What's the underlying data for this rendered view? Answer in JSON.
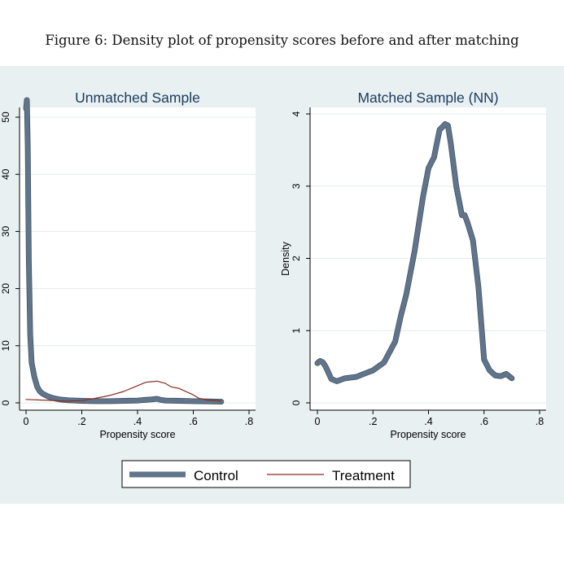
{
  "caption": "Figure 6: Density plot of propensity scores before and after matching",
  "colors": {
    "outer_background": "#e9f0f2",
    "plot_background": "#ffffff",
    "control": "#60758b",
    "treatment": "#8b2c1e",
    "title": "#1c3a5e"
  },
  "chart_data": [
    {
      "type": "line",
      "title": "Unmatched Sample",
      "xlabel": "Propensity score",
      "ylabel": "",
      "xlim": [
        0,
        0.8
      ],
      "ylim": [
        0,
        53
      ],
      "xticks": [
        0,
        0.2,
        0.4,
        0.6,
        0.8
      ],
      "xtick_labels": [
        "0",
        ".2",
        ".4",
        ".6",
        ".8"
      ],
      "yticks": [
        0,
        10,
        20,
        30,
        40,
        50
      ],
      "ytick_labels": [
        "0",
        "10",
        "20",
        "30",
        "40",
        "50"
      ],
      "grid": true,
      "series": [
        {
          "name": "Control",
          "x": [
            0,
            0.003,
            0.006,
            0.01,
            0.015,
            0.02,
            0.03,
            0.04,
            0.05,
            0.06,
            0.08,
            0.1,
            0.12,
            0.15,
            0.2,
            0.25,
            0.3,
            0.35,
            0.4,
            0.42,
            0.45,
            0.47,
            0.48,
            0.5,
            0.55,
            0.6,
            0.65,
            0.7
          ],
          "y": [
            51.5,
            53,
            45,
            25,
            12,
            7,
            4.5,
            2.8,
            2,
            1.6,
            1.1,
            0.8,
            0.6,
            0.45,
            0.35,
            0.3,
            0.3,
            0.35,
            0.4,
            0.5,
            0.6,
            0.7,
            0.55,
            0.4,
            0.35,
            0.3,
            0.25,
            0.2
          ]
        },
        {
          "name": "Treatment",
          "x": [
            0,
            0.05,
            0.1,
            0.15,
            0.2,
            0.25,
            0.3,
            0.35,
            0.4,
            0.43,
            0.45,
            0.47,
            0.5,
            0.52,
            0.55,
            0.6,
            0.62,
            0.65,
            0.7
          ],
          "y": [
            0.6,
            0.5,
            0.4,
            0.3,
            0.4,
            0.8,
            1.3,
            2,
            3,
            3.6,
            3.7,
            3.8,
            3.4,
            2.8,
            2.5,
            1.4,
            0.8,
            0.5,
            0.3
          ]
        }
      ]
    },
    {
      "type": "line",
      "title": "Matched Sample (NN)",
      "xlabel": "Propensity score",
      "ylabel": "Density",
      "xlim": [
        0,
        0.8
      ],
      "ylim": [
        0,
        4
      ],
      "xticks": [
        0,
        0.2,
        0.4,
        0.6,
        0.8
      ],
      "xtick_labels": [
        "0",
        ".2",
        ".4",
        ".6",
        ".8"
      ],
      "yticks": [
        0,
        1,
        2,
        3,
        4
      ],
      "ytick_labels": [
        "0",
        "1",
        "2",
        "3",
        "4"
      ],
      "grid": true,
      "series": [
        {
          "name": "Control",
          "x": [
            0,
            0.01,
            0.02,
            0.03,
            0.05,
            0.07,
            0.1,
            0.14,
            0.18,
            0.2,
            0.24,
            0.28,
            0.3,
            0.32,
            0.35,
            0.38,
            0.4,
            0.42,
            0.44,
            0.45,
            0.46,
            0.47,
            0.48,
            0.49,
            0.5,
            0.52,
            0.53,
            0.54,
            0.56,
            0.58,
            0.6,
            0.62,
            0.64,
            0.66,
            0.68,
            0.7
          ],
          "y": [
            0.55,
            0.58,
            0.56,
            0.5,
            0.33,
            0.3,
            0.34,
            0.36,
            0.42,
            0.45,
            0.56,
            0.85,
            1.2,
            1.5,
            2.1,
            2.85,
            3.25,
            3.4,
            3.78,
            3.82,
            3.86,
            3.84,
            3.6,
            3.3,
            3,
            2.6,
            2.6,
            2.5,
            2.25,
            1.6,
            0.6,
            0.45,
            0.38,
            0.37,
            0.4,
            0.34
          ]
        }
      ]
    }
  ],
  "legend": {
    "placement": "bottom-center",
    "items": [
      {
        "label": "Control"
      },
      {
        "label": "Treatment"
      }
    ]
  }
}
